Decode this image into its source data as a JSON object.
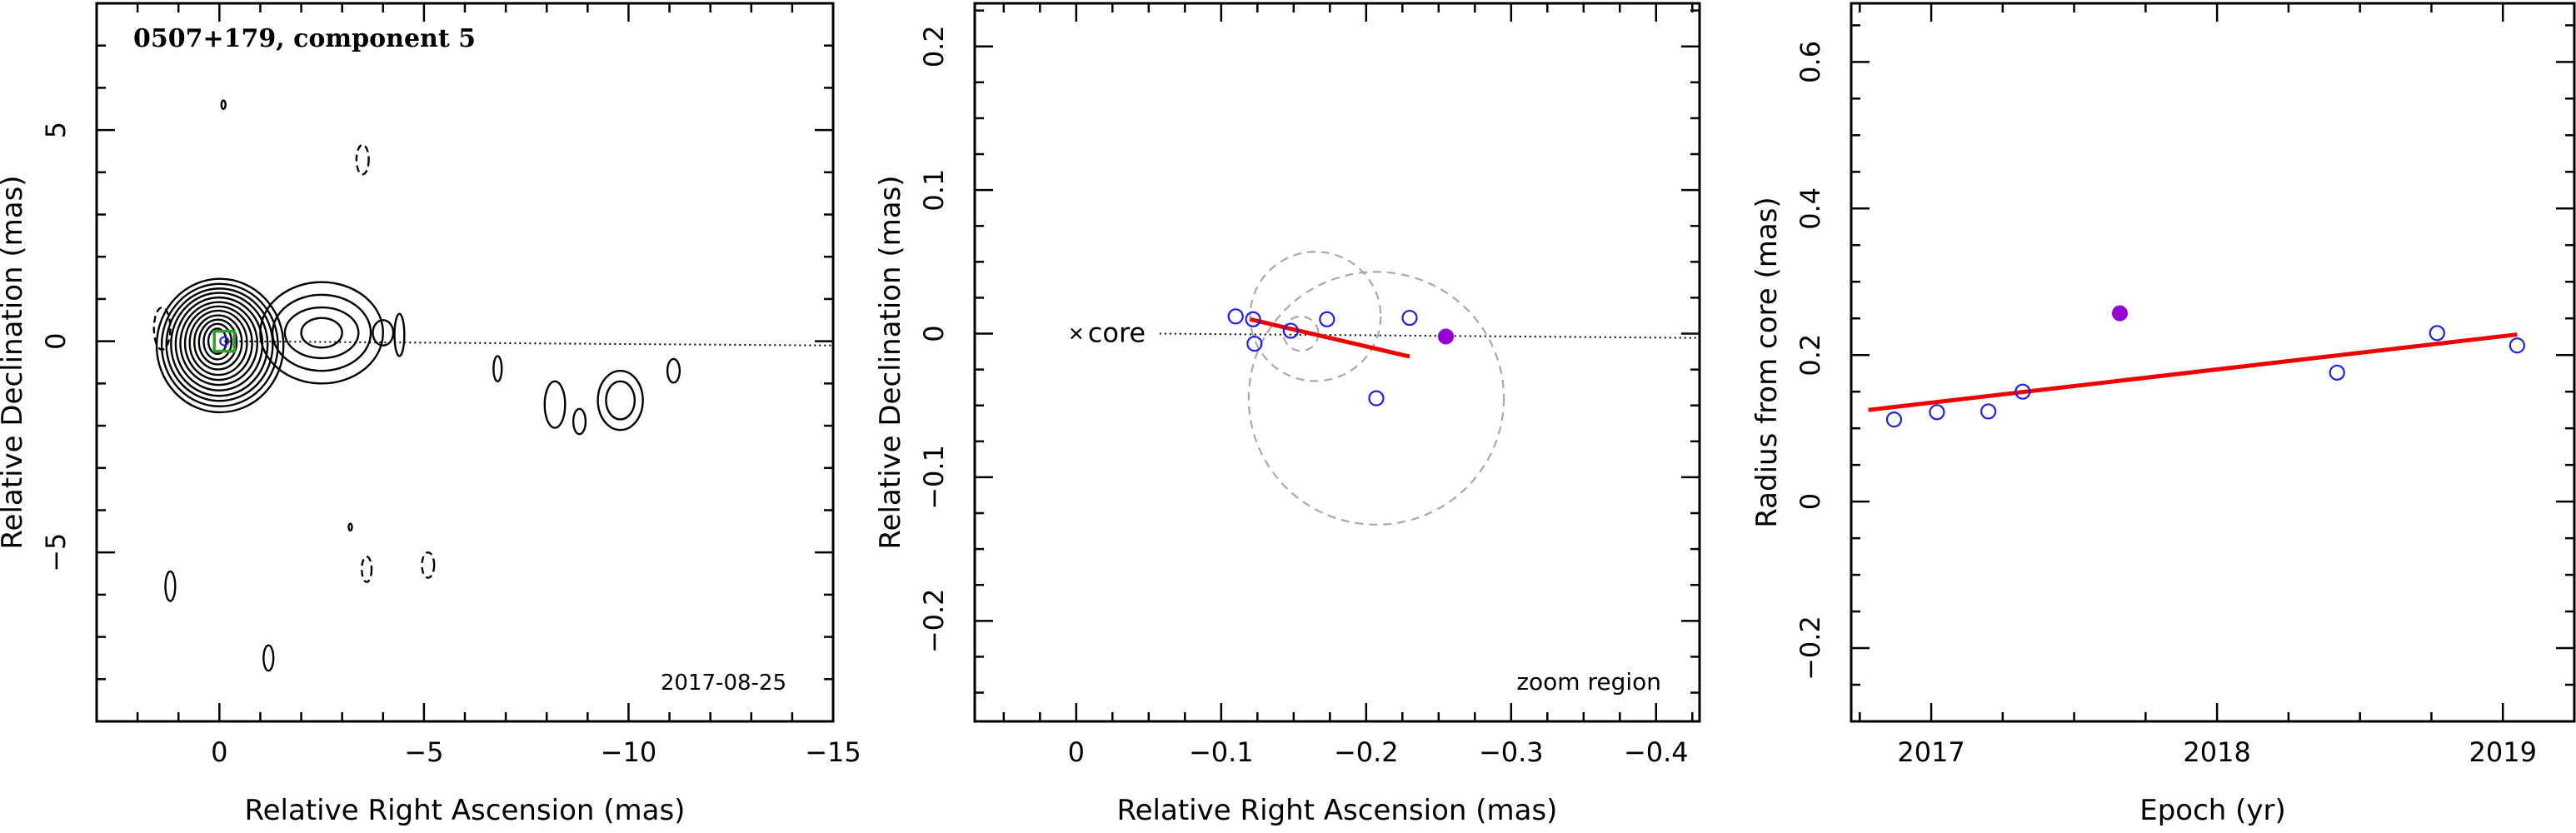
{
  "chart_data": [
    {
      "type": "contour",
      "title": "0507+179, component 5",
      "date_label": "2017-08-25",
      "xlabel": "Relative Right Ascension (mas)",
      "ylabel": "Relative Declination (mas)",
      "xlim": [
        3,
        -15
      ],
      "ylim": [
        -9,
        8
      ],
      "xticks": [
        0,
        -5,
        -10,
        -15
      ],
      "xtick_labels": [
        "0",
        "−5",
        "−10",
        "−15"
      ],
      "yticks": [
        5,
        0,
        -5
      ],
      "ytick_labels": [
        "5",
        "0",
        "−5"
      ],
      "core_marker": {
        "x": -0.12,
        "y": 0.0,
        "color": "#2ca02c"
      },
      "jet_axis": {
        "x": [
          0,
          -15
        ],
        "y": [
          0,
          -0.1
        ]
      },
      "contours": {
        "core": {
          "cx": 0.05,
          "cy": 0.0,
          "levels": [
            [
              1.55,
              1.58
            ],
            [
              1.42,
              1.45
            ],
            [
              1.3,
              1.33
            ],
            [
              1.18,
              1.22
            ],
            [
              1.06,
              1.1
            ],
            [
              0.94,
              0.98
            ],
            [
              0.82,
              0.87
            ],
            [
              0.7,
              0.76
            ],
            [
              0.58,
              0.64
            ],
            [
              0.46,
              0.53
            ],
            [
              0.34,
              0.42
            ],
            [
              0.22,
              0.3
            ]
          ]
        },
        "knot": {
          "cx": -2.5,
          "cy": 0.2,
          "levels": [
            [
              1.5,
              1.2
            ],
            [
              1.2,
              0.9
            ],
            [
              0.9,
              0.6
            ],
            [
              0.5,
              0.35
            ]
          ]
        },
        "small_solid": [
          {
            "x": -4.0,
            "y": 0.2,
            "rx": 0.25,
            "ry": 0.3
          },
          {
            "x": -4.4,
            "y": 0.15,
            "rx": 0.12,
            "ry": 0.5
          },
          {
            "x": -6.8,
            "y": -0.65,
            "rx": 0.1,
            "ry": 0.3
          },
          {
            "x": -8.2,
            "y": -1.5,
            "rx": 0.25,
            "ry": 0.55
          },
          {
            "x": -8.8,
            "y": -1.9,
            "rx": 0.15,
            "ry": 0.3
          },
          {
            "x": -9.8,
            "y": -1.4,
            "rx": 0.35,
            "ry": 0.45
          },
          {
            "x": -9.8,
            "y": -1.4,
            "rx": 0.55,
            "ry": 0.7
          },
          {
            "x": -11.1,
            "y": -0.7,
            "rx": 0.15,
            "ry": 0.28
          },
          {
            "x": 1.2,
            "y": -5.8,
            "rx": 0.12,
            "ry": 0.35
          },
          {
            "x": -1.2,
            "y": -7.5,
            "rx": 0.12,
            "ry": 0.3
          },
          {
            "x": -0.1,
            "y": 5.6,
            "rx": 0.05,
            "ry": 0.1
          },
          {
            "x": -3.2,
            "y": -4.4,
            "rx": 0.03,
            "ry": 0.08
          }
        ],
        "small_dashed": [
          {
            "x": 1.4,
            "y": 0.3,
            "rx": 0.2,
            "ry": 0.5
          },
          {
            "x": -3.5,
            "y": 4.3,
            "rx": 0.15,
            "ry": 0.35
          },
          {
            "x": -3.6,
            "y": -5.4,
            "rx": 0.12,
            "ry": 0.3
          },
          {
            "x": -5.1,
            "y": -5.3,
            "rx": 0.15,
            "ry": 0.3
          }
        ]
      }
    },
    {
      "type": "scatter",
      "annotation": "zoom region",
      "core_label": "core",
      "xlabel": "Relative Right Ascension (mas)",
      "ylabel": "Relative Declination (mas)",
      "xlim": [
        0.07,
        -0.43
      ],
      "ylim": [
        -0.27,
        0.23
      ],
      "xticks": [
        0,
        -0.1,
        -0.2,
        -0.3,
        -0.4
      ],
      "xtick_labels": [
        "0",
        "−0.1",
        "−0.2",
        "−0.3",
        "−0.4"
      ],
      "yticks": [
        0.2,
        0.1,
        0,
        -0.1,
        -0.2
      ],
      "ytick_labels": [
        "0.2",
        "0.1",
        "0",
        "−0.1",
        "−0.2"
      ],
      "points_open": [
        {
          "x": -0.11,
          "y": 0.012
        },
        {
          "x": -0.122,
          "y": 0.01
        },
        {
          "x": -0.123,
          "y": -0.007
        },
        {
          "x": -0.148,
          "y": 0.002
        },
        {
          "x": -0.173,
          "y": 0.01
        },
        {
          "x": -0.207,
          "y": -0.045
        },
        {
          "x": -0.23,
          "y": 0.011
        }
      ],
      "point_filled": {
        "x": -0.255,
        "y": -0.002
      },
      "fit_line": {
        "x": [
          -0.12,
          -0.23
        ],
        "y": [
          0.01,
          -0.016
        ]
      },
      "fit_color": "#ee0000",
      "point_color": "#2020dd",
      "filled_color": "#9400d3",
      "ellipses_dashed": [
        {
          "cx": -0.207,
          "cy": -0.045,
          "rx": 0.088,
          "ry": 0.088
        },
        {
          "cx": -0.165,
          "cy": 0.012,
          "rx": 0.045,
          "ry": 0.045
        },
        {
          "cx": -0.155,
          "cy": 0.0,
          "rx": 0.012,
          "ry": 0.012
        }
      ],
      "jet_axis": {
        "x": [
          0,
          -0.43
        ],
        "y": [
          0,
          -0.003
        ]
      }
    },
    {
      "type": "scatter",
      "xlabel": "Epoch (yr)",
      "ylabel": "Radius from core (mas)",
      "xlim": [
        2016.72,
        2019.25
      ],
      "ylim": [
        -0.3,
        0.68
      ],
      "xticks": [
        2017,
        2018,
        2019
      ],
      "xtick_labels": [
        "2017",
        "2018",
        "2019"
      ],
      "yticks": [
        0.6,
        0.4,
        0.2,
        0,
        -0.2
      ],
      "ytick_labels": [
        "0.6",
        "0.4",
        "0.2",
        "0",
        "−0.2"
      ],
      "points_open": [
        {
          "x": 2016.87,
          "y": 0.112
        },
        {
          "x": 2017.02,
          "y": 0.122
        },
        {
          "x": 2017.2,
          "y": 0.123
        },
        {
          "x": 2017.32,
          "y": 0.15
        },
        {
          "x": 2018.42,
          "y": 0.176
        },
        {
          "x": 2018.77,
          "y": 0.23
        },
        {
          "x": 2019.05,
          "y": 0.213
        }
      ],
      "point_filled": {
        "x": 2017.66,
        "y": 0.257
      },
      "fit_line": {
        "x": [
          2016.78,
          2019.05
        ],
        "y": [
          0.125,
          0.228
        ]
      },
      "fit_color": "#ee0000",
      "point_color": "#2020dd",
      "filled_color": "#9400d3"
    }
  ]
}
